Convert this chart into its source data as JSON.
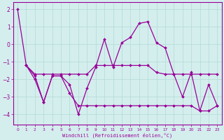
{
  "xlabel": "Windchill (Refroidissement éolien,°C)",
  "background_color": "#d4eeed",
  "grid_color": "#b8ddd8",
  "line_color": "#990099",
  "xlim": [
    -0.5,
    23.5
  ],
  "ylim": [
    -4.6,
    2.4
  ],
  "yticks": [
    -4,
    -3,
    -2,
    -1,
    0,
    1,
    2
  ],
  "xticks": [
    0,
    1,
    2,
    3,
    4,
    5,
    6,
    7,
    8,
    9,
    10,
    11,
    12,
    13,
    14,
    15,
    16,
    17,
    18,
    19,
    20,
    21,
    22,
    23
  ],
  "series1_x": [
    0,
    1,
    2,
    3,
    4,
    5,
    6,
    7,
    8,
    9,
    10,
    11,
    12,
    13,
    14,
    15,
    16,
    17,
    18,
    19,
    20,
    21,
    22,
    23
  ],
  "series1_y": [
    2.0,
    -1.2,
    -2.0,
    -3.3,
    -1.8,
    -1.8,
    -2.3,
    -4.0,
    -2.5,
    -1.3,
    0.3,
    -1.3,
    0.1,
    0.4,
    1.2,
    1.3,
    0.1,
    -0.2,
    -1.7,
    -3.0,
    -1.6,
    -3.8,
    -2.3,
    -3.5
  ],
  "series2_x": [
    1,
    2,
    3,
    4,
    5,
    6,
    7,
    8,
    9,
    10,
    11,
    12,
    13,
    14,
    15,
    16,
    17,
    18,
    19,
    20,
    21,
    22,
    23
  ],
  "series2_y": [
    -1.2,
    -1.7,
    -1.7,
    -1.7,
    -1.7,
    -1.7,
    -1.7,
    -1.7,
    -1.2,
    -1.2,
    -1.2,
    -1.2,
    -1.2,
    -1.2,
    -1.2,
    -1.6,
    -1.7,
    -1.7,
    -1.7,
    -1.7,
    -1.7,
    -1.7,
    -1.7
  ],
  "series3_x": [
    1,
    2,
    3,
    4,
    5,
    6,
    7,
    8,
    9,
    10,
    11,
    12,
    13,
    14,
    15,
    16,
    17,
    18,
    19,
    20,
    21,
    22,
    23
  ],
  "series3_y": [
    -1.2,
    -1.8,
    -3.3,
    -1.8,
    -1.8,
    -2.8,
    -3.5,
    -3.5,
    -3.5,
    -3.5,
    -3.5,
    -3.5,
    -3.5,
    -3.5,
    -3.5,
    -3.5,
    -3.5,
    -3.5,
    -3.5,
    -3.5,
    -3.8,
    -3.8,
    -3.5
  ]
}
